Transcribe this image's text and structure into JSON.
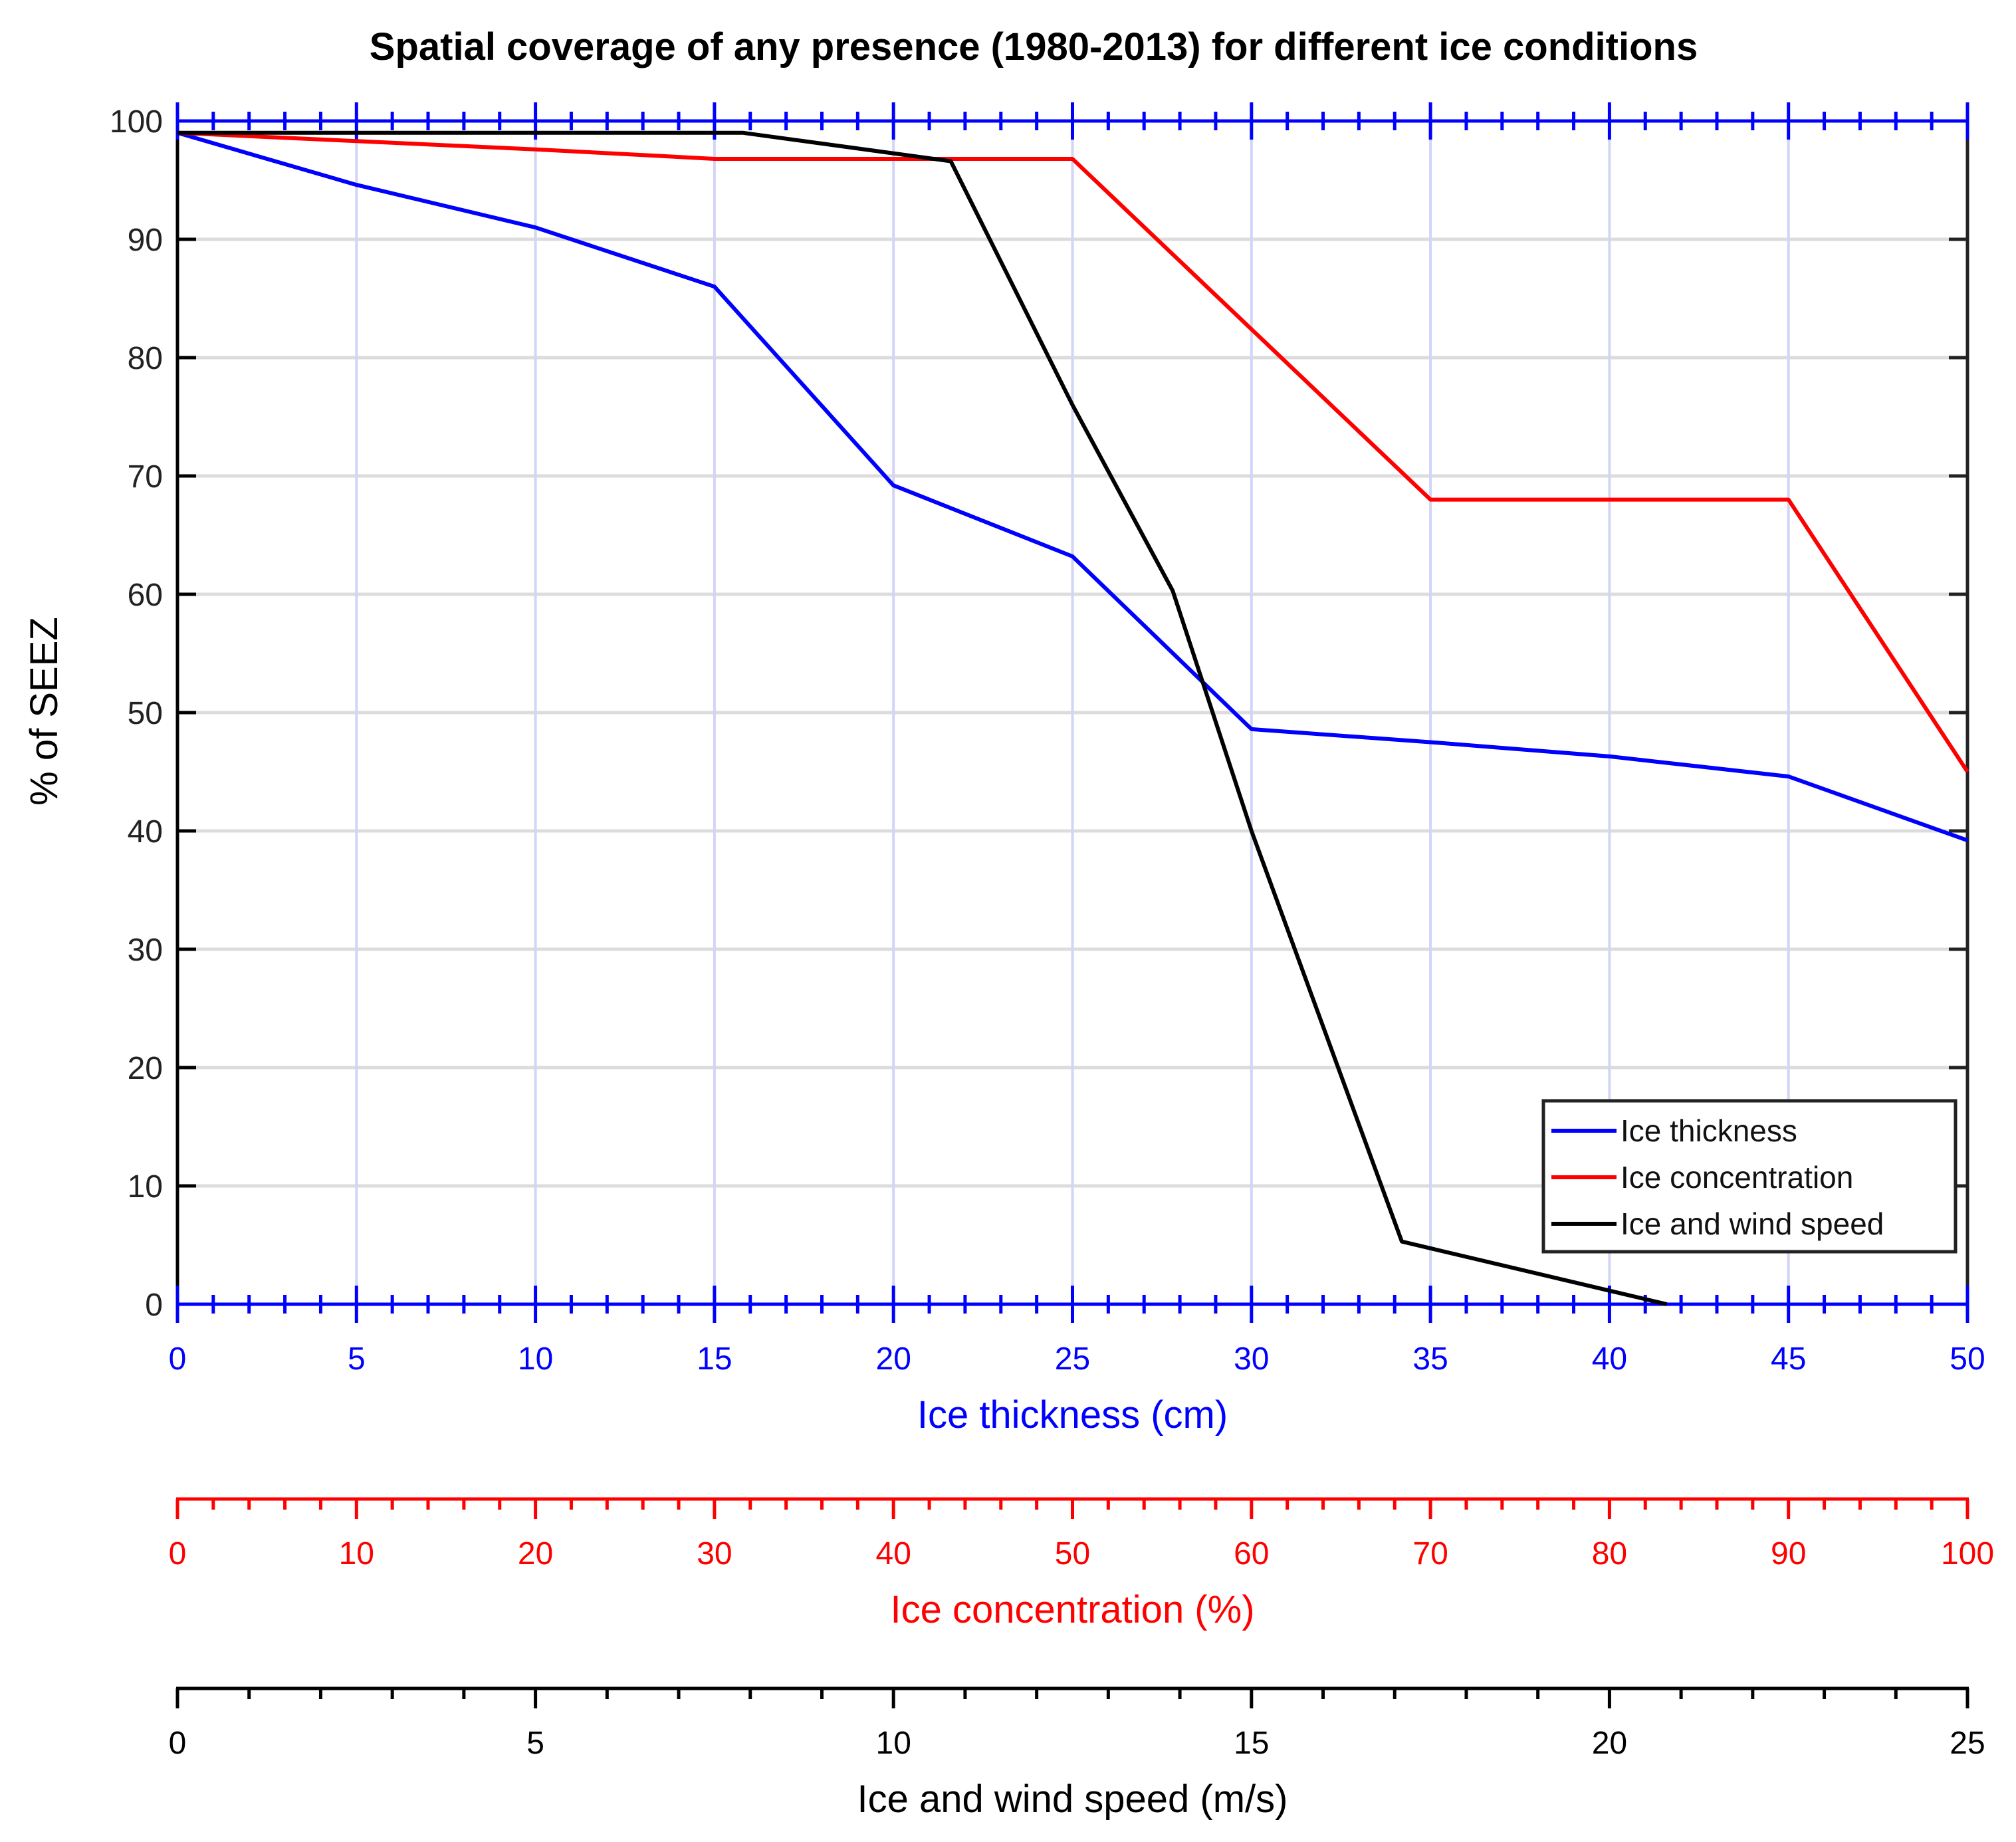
{
  "chart_data": {
    "type": "line",
    "title": "Spatial coverage of any presence (1980-2013) for different ice conditions",
    "ylabel": "% of SEEZ",
    "ylim": [
      0,
      100
    ],
    "yticks": [
      0,
      10,
      20,
      30,
      40,
      50,
      60,
      70,
      80,
      90,
      100
    ],
    "grid": true,
    "legend_position": "bottom-right",
    "x_axes": [
      {
        "id": "thickness",
        "label": "Ice thickness (cm)",
        "color": "#0000ff",
        "range": [
          0,
          50
        ],
        "ticks": [
          0,
          5,
          10,
          15,
          20,
          25,
          30,
          35,
          40,
          45,
          50
        ],
        "minor_step": 1
      },
      {
        "id": "concentration",
        "label": "Ice concentration (%)",
        "color": "#ff0000",
        "range": [
          0,
          100
        ],
        "ticks": [
          0,
          10,
          20,
          30,
          40,
          50,
          60,
          70,
          80,
          90,
          100
        ],
        "minor_step": 2
      },
      {
        "id": "wind",
        "label": "Ice and wind speed (m/s)",
        "color": "#000000",
        "range": [
          0,
          25
        ],
        "ticks": [
          0,
          5,
          10,
          15,
          20,
          25
        ],
        "minor_step": 1
      }
    ],
    "series": [
      {
        "name": "Ice thickness",
        "axis": "thickness",
        "color": "#0000ff",
        "x": [
          0,
          5,
          10,
          15,
          20,
          25,
          30,
          35,
          40,
          45,
          50
        ],
        "y": [
          99,
          94.6,
          91,
          86,
          69.2,
          63.2,
          48.6,
          47.5,
          46.3,
          44.6,
          39.2
        ]
      },
      {
        "name": "Ice concentration",
        "axis": "concentration",
        "color": "#ff0000",
        "x": [
          0,
          10,
          20,
          30,
          40,
          50,
          60,
          70,
          80,
          90,
          100
        ],
        "y": [
          99,
          98.3,
          97.6,
          96.8,
          96.8,
          96.8,
          82.4,
          68,
          68,
          68,
          45
        ]
      },
      {
        "name": "Ice and wind speed",
        "axis": "wind",
        "color": "#000000",
        "x": [
          0,
          7.9,
          10.8,
          12.5,
          13.9,
          15,
          17.1,
          20.8
        ],
        "y": [
          99,
          99,
          96.6,
          76,
          60.3,
          40,
          5.3,
          0
        ]
      }
    ]
  }
}
